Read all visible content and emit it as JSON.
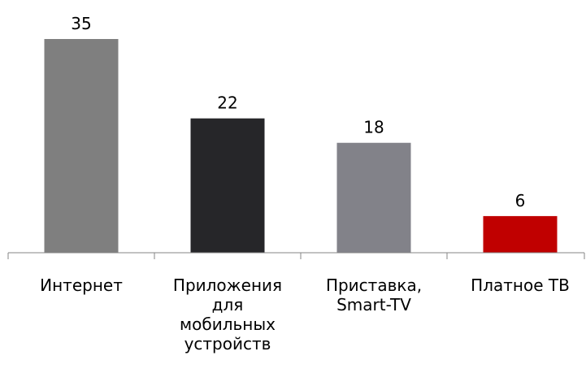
{
  "chart_data": {
    "type": "bar",
    "categories": [
      "Интернет",
      "Приложения для мобильных устройств",
      "Приставка, Smart-TV",
      "Платное ТВ"
    ],
    "category_lines": [
      [
        "Интернет"
      ],
      [
        "Приложения",
        "для",
        "мобильных",
        "устройств"
      ],
      [
        "Приставка,",
        "Smart-TV"
      ],
      [
        "Платное ТВ"
      ]
    ],
    "values": [
      35,
      22,
      18,
      6
    ],
    "data_labels": [
      "35",
      "22",
      "18",
      "6"
    ],
    "colors": [
      "#7f7f7f",
      "#262629",
      "#828289",
      "#c00000"
    ],
    "ylim": [
      0,
      35
    ],
    "grid": false,
    "legend": "none",
    "title": "",
    "xlabel": "",
    "ylabel": ""
  }
}
